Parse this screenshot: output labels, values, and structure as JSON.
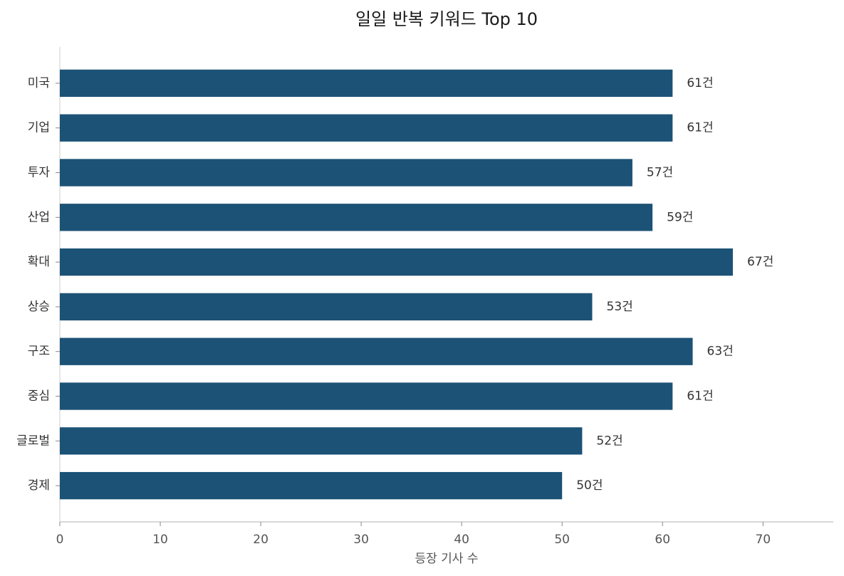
{
  "chart_data": {
    "type": "barh",
    "title": "일일 반복 키워드 Top 10",
    "categories": [
      "미국",
      "기업",
      "투자",
      "산업",
      "확대",
      "상승",
      "구조",
      "중심",
      "글로벌",
      "경제"
    ],
    "values": [
      61,
      61,
      57,
      59,
      67,
      53,
      63,
      61,
      52,
      50
    ],
    "value_labels": [
      "61건",
      "61건",
      "57건",
      "59건",
      "67건",
      "53건",
      "63건",
      "61건",
      "52건",
      "50건"
    ],
    "color": "#1c5276",
    "xlabel": "등장 기사 수",
    "xlim": [
      0,
      77
    ],
    "xticks": [
      0,
      10,
      20,
      30,
      40,
      50,
      60,
      70
    ],
    "grid": false
  }
}
